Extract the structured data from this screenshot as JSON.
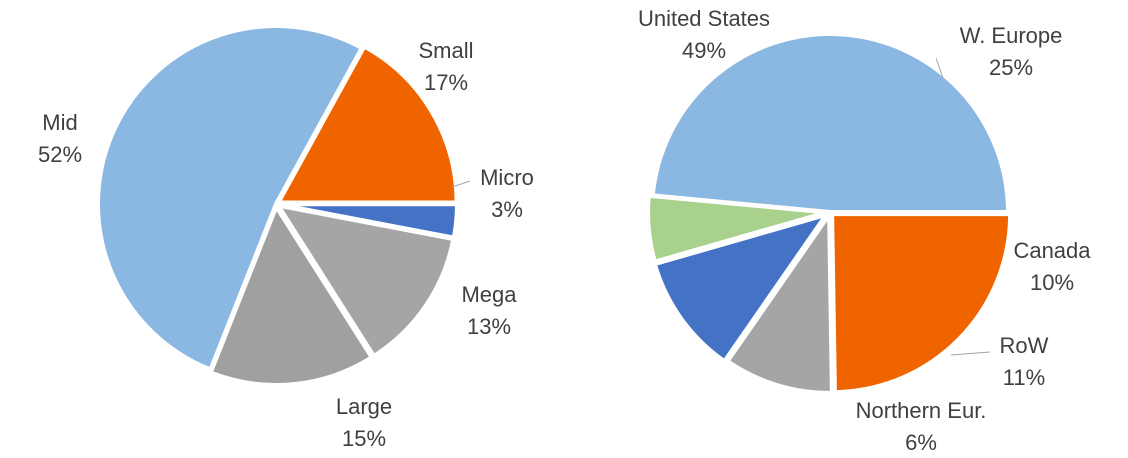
{
  "chart_data": [
    {
      "type": "pie",
      "slices": [
        {
          "label": "Micro",
          "value": 3,
          "display": "3%",
          "color": "#4472C4"
        },
        {
          "label": "Mega",
          "value": 13,
          "display": "13%",
          "color": "#A5A5A5"
        },
        {
          "label": "Large",
          "value": 15,
          "display": "15%",
          "color": "#A0A0A0"
        },
        {
          "label": "Mid",
          "value": 52,
          "display": "52%",
          "color": "#8AB8E2"
        },
        {
          "label": "Small",
          "value": 17,
          "display": "17%",
          "color": "#F06400"
        }
      ]
    },
    {
      "type": "pie",
      "slices": [
        {
          "label": "W. Europe",
          "value": 25,
          "display": "25%",
          "color": "#F06400"
        },
        {
          "label": "Canada",
          "value": 10,
          "display": "10%",
          "color": "#A5A5A5"
        },
        {
          "label": "RoW",
          "value": 11,
          "display": "11%",
          "color": "#4472C4"
        },
        {
          "label": "Northern Eur.",
          "value": 6,
          "display": "6%",
          "color": "#A9D18E"
        },
        {
          "label": "United States",
          "value": 49,
          "display": "49%",
          "color": "#8AB8E2"
        }
      ]
    }
  ]
}
